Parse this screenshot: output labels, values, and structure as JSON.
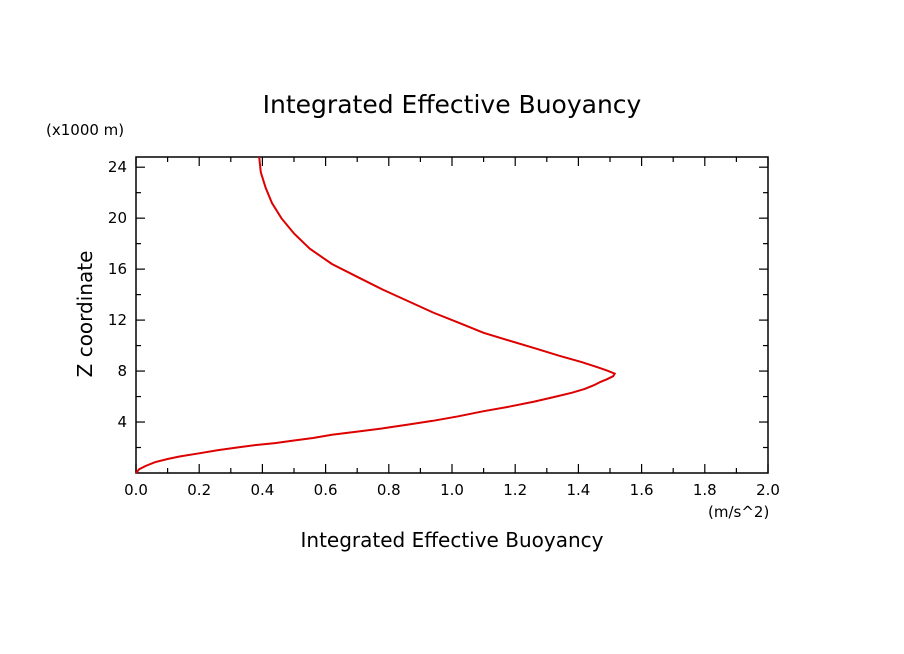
{
  "chart_data": {
    "type": "line",
    "title": "Integrated Effective Buoyancy",
    "xlabel": "Integrated Effective Buoyancy",
    "x_units": "(m/s^2)",
    "ylabel": "Z coordinate",
    "y_units": "(x1000 m)",
    "xlim": [
      0.0,
      2.0
    ],
    "ylim": [
      0,
      24.8
    ],
    "x_ticks": [
      "0.0",
      "0.2",
      "0.4",
      "0.6",
      "0.8",
      "1.0",
      "1.2",
      "1.4",
      "1.6",
      "1.8",
      "2.0"
    ],
    "y_ticks": [
      "4",
      "8",
      "12",
      "16",
      "20",
      "24"
    ],
    "grid": false,
    "line_color": "#dd0000",
    "series": [
      {
        "x": [
          0.0,
          0.01,
          0.03,
          0.06,
          0.1,
          0.14,
          0.2,
          0.26,
          0.32,
          0.38,
          0.44,
          0.5,
          0.56,
          0.62,
          0.7,
          0.78,
          0.86,
          0.94,
          1.02,
          1.1,
          1.18,
          1.26,
          1.33,
          1.38,
          1.42,
          1.45,
          1.47,
          1.49,
          1.51,
          1.515,
          1.49,
          1.46,
          1.41,
          1.34,
          1.26,
          1.18,
          1.1,
          1.02,
          0.94,
          0.86,
          0.78,
          0.7,
          0.62,
          0.55,
          0.5,
          0.46,
          0.43,
          0.41,
          0.395,
          0.39
        ],
        "y": [
          0.0,
          0.3,
          0.55,
          0.85,
          1.1,
          1.3,
          1.55,
          1.8,
          2.0,
          2.2,
          2.35,
          2.55,
          2.75,
          3.0,
          3.25,
          3.5,
          3.8,
          4.1,
          4.45,
          4.85,
          5.2,
          5.6,
          6.0,
          6.3,
          6.6,
          6.9,
          7.15,
          7.35,
          7.6,
          7.8,
          8.05,
          8.3,
          8.7,
          9.2,
          9.8,
          10.4,
          11.0,
          11.8,
          12.6,
          13.5,
          14.4,
          15.4,
          16.4,
          17.6,
          18.8,
          20.0,
          21.2,
          22.4,
          23.6,
          24.8
        ]
      }
    ]
  }
}
